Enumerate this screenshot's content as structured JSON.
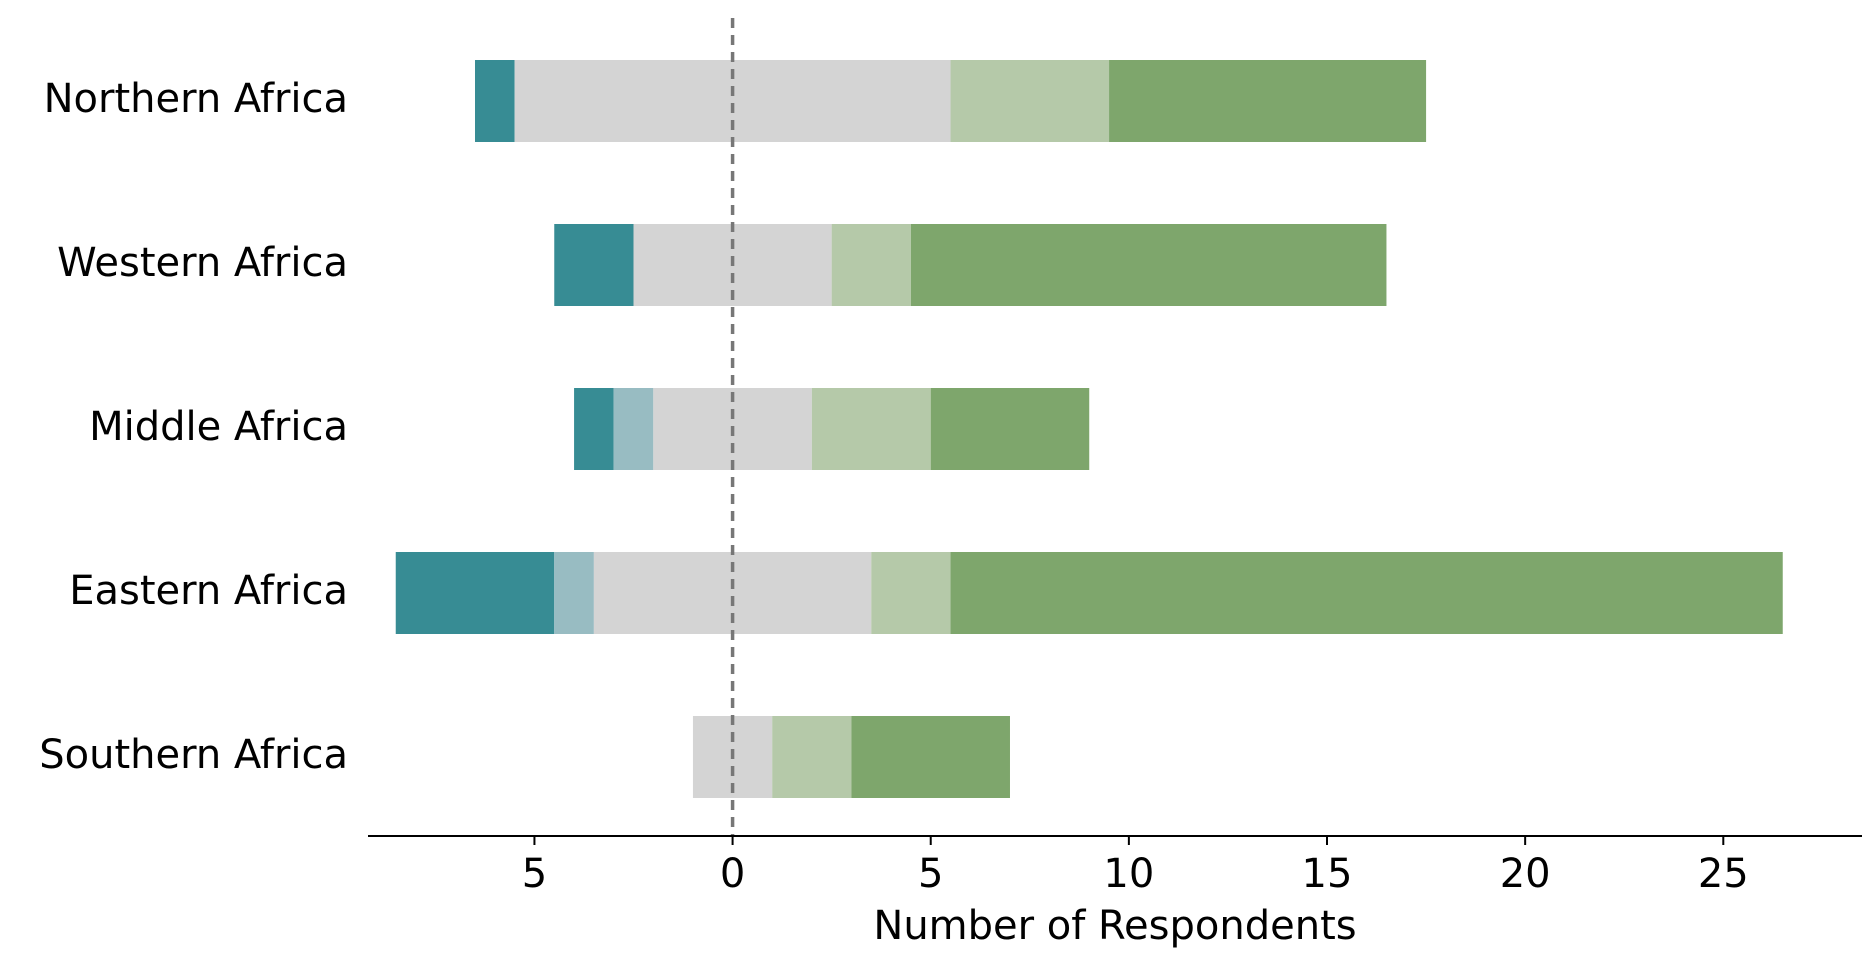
{
  "chart_data": {
    "type": "diverging-bar",
    "x_label": "Number of Respondents",
    "categories": [
      "Northern Africa",
      "Western Africa",
      "Middle Africa",
      "Eastern Africa",
      "Southern Africa"
    ],
    "series": [
      {
        "color": "#378c94",
        "values": [
          1,
          2,
          1,
          4,
          0
        ]
      },
      {
        "color": "#98bcc2",
        "values": [
          0,
          0,
          1,
          1,
          0
        ]
      },
      {
        "color": "#d4d4d4",
        "values": [
          11,
          5,
          4,
          7,
          2
        ]
      },
      {
        "color": "#b5c9a9",
        "values": [
          4,
          2,
          3,
          2,
          2
        ]
      },
      {
        "color": "#7ea66c",
        "values": [
          8,
          12,
          4,
          21,
          4
        ]
      }
    ],
    "xlim": [
      -9.2,
      28.5
    ],
    "xticks": [
      {
        "value": -5,
        "label": "5"
      },
      0,
      5,
      10,
      15,
      20,
      25
    ]
  }
}
